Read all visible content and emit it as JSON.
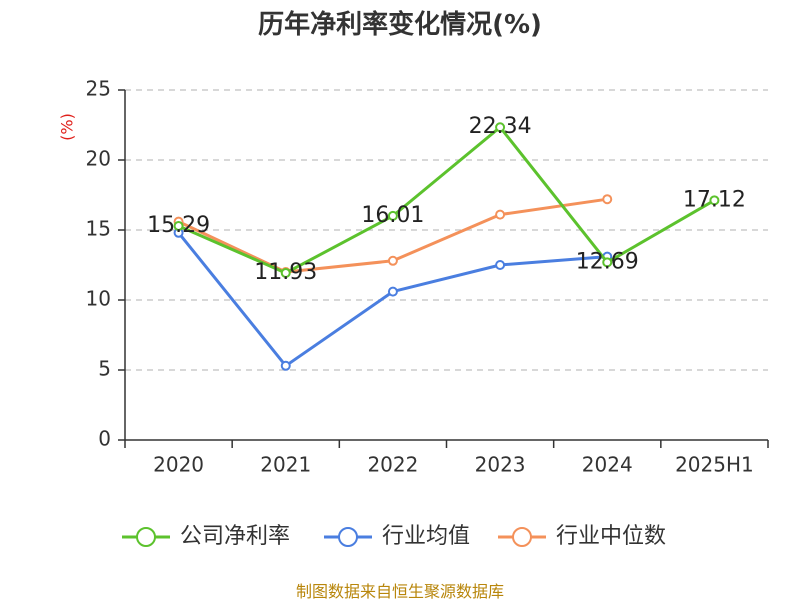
{
  "chart_data": {
    "type": "line",
    "title": "历年净利率变化情况(%)",
    "ylabel": "(%)",
    "xlabel": "",
    "categories": [
      "2020",
      "2021",
      "2022",
      "2023",
      "2024",
      "2025H1"
    ],
    "ylim": [
      0,
      25
    ],
    "yticks": [
      "0",
      "5",
      "10",
      "15",
      "20",
      "25"
    ],
    "grid": true,
    "legend_position": "bottom",
    "series": [
      {
        "name": "公司净利率",
        "color": "#5cc22d",
        "values": [
          15.29,
          11.93,
          16.01,
          22.34,
          12.69,
          17.12
        ],
        "labels": [
          "15.29",
          "11.93",
          "16.01",
          "22.34",
          "12.69",
          "17.12"
        ]
      },
      {
        "name": "行业均值",
        "color": "#4a7ee0",
        "values": [
          14.8,
          5.3,
          10.6,
          12.5,
          13.1,
          null
        ]
      },
      {
        "name": "行业中位数",
        "color": "#f4915a",
        "values": [
          15.6,
          12.0,
          12.8,
          16.1,
          17.2,
          null
        ]
      }
    ]
  },
  "source_note": "制图数据来自恒生聚源数据库",
  "colors": {
    "axis": "#333333",
    "grid": "#cccccc",
    "unit_label": "#e0201b"
  }
}
